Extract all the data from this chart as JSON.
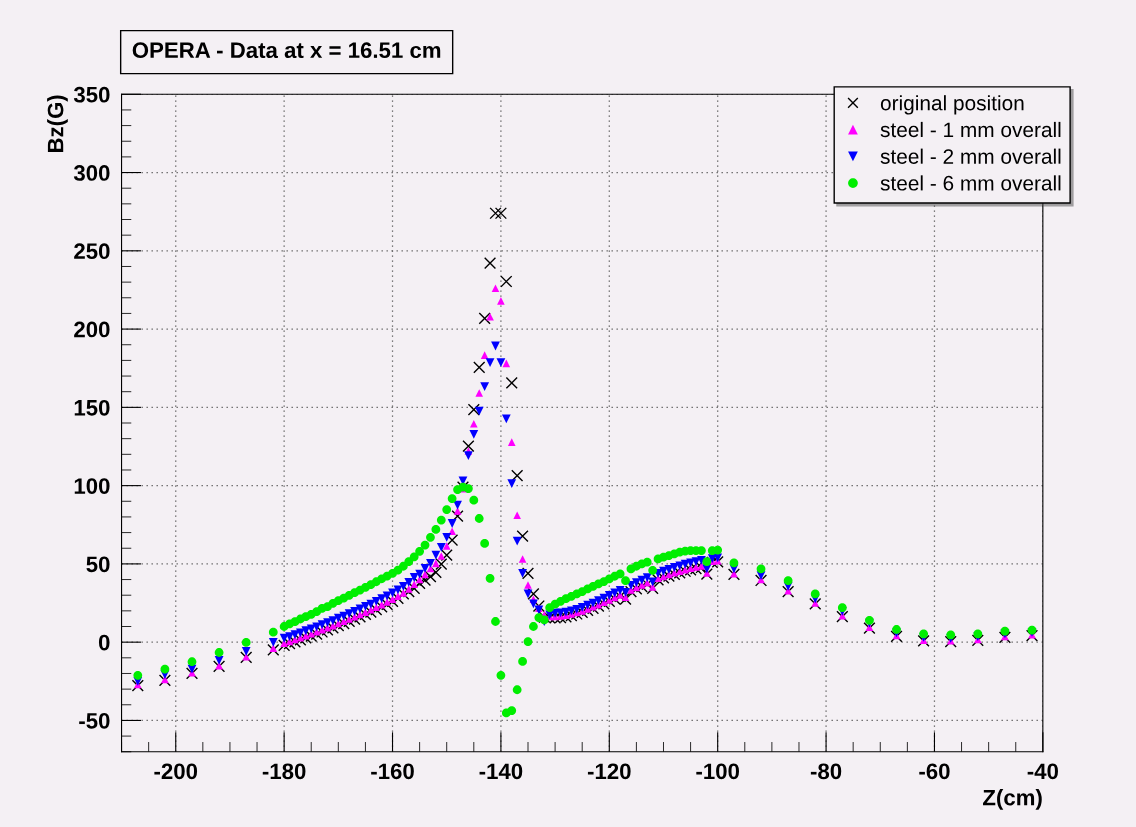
{
  "chart_data": {
    "type": "scatter",
    "title": "OPERA - Data at x = 16.51 cm",
    "xlabel": "Z(cm)",
    "ylabel": "Bz(G)",
    "x": [
      -207,
      -202,
      -197,
      -192,
      -187,
      -182,
      -180,
      -179,
      -178,
      -177,
      -176,
      -175,
      -174,
      -173,
      -172,
      -171,
      -170,
      -169,
      -168,
      -167,
      -166,
      -165,
      -164,
      -163,
      -162,
      -161,
      -160,
      -159,
      -158,
      -157,
      -156,
      -155,
      -154,
      -153,
      -152,
      -151,
      -150,
      -149,
      -148,
      -147,
      -146,
      -145,
      -144,
      -143,
      -142,
      -141,
      -140,
      -139,
      -138,
      -137,
      -136,
      -135,
      -134,
      -133,
      -132,
      -131,
      -130,
      -129,
      -128,
      -127,
      -126,
      -125,
      -124,
      -123,
      -122,
      -121,
      -120,
      -119,
      -118,
      -117,
      -116,
      -115,
      -114,
      -113,
      -112,
      -111,
      -110,
      -109,
      -108,
      -107,
      -106,
      -105,
      -104,
      -103,
      -102,
      -101,
      -100,
      -97,
      -92,
      -87,
      -82,
      -77,
      -72,
      -67,
      -62,
      -57,
      -52,
      -47,
      -42
    ],
    "series": [
      {
        "name": "original position",
        "color": "#000000",
        "marker": "cross",
        "values": [
          -27.8,
          -24.4,
          -20,
          -15.5,
          -9.7,
          -4.9,
          -2.1,
          -1,
          0.2,
          1.4,
          2.7,
          3.9,
          5.2,
          6.5,
          7.8,
          9.1,
          10.5,
          11.9,
          13.3,
          14.7,
          16.2,
          17.7,
          19.2,
          20.8,
          22.5,
          24.2,
          26,
          28,
          30.8,
          32.3,
          34.4,
          37.6,
          39.7,
          41.8,
          44.6,
          49.9,
          55.6,
          65.2,
          80.5,
          99,
          125.3,
          148.6,
          175.6,
          206.8,
          242.2,
          274,
          274,
          230.4,
          165.6,
          106.4,
          67.7,
          44,
          30.8,
          23.1,
          16,
          15.5,
          15.5,
          15.7,
          16.2,
          17,
          18,
          19,
          20.3,
          21.6,
          23,
          24.5,
          26,
          27.6,
          29.2,
          27.5,
          32.3,
          34,
          35.5,
          37,
          34.3,
          39.8,
          41,
          42.2,
          43.3,
          44.3,
          45.3,
          46.2,
          47,
          47.7,
          43.5,
          50.9,
          51.3,
          43.3,
          39.4,
          32.3,
          24.4,
          16.3,
          9,
          3.7,
          0.8,
          0.4,
          1.2,
          3.1,
          4.2
        ]
      },
      {
        "name": "steel - 1 mm overall",
        "color": "#ff00ff",
        "marker": "triangle",
        "values": [
          -27,
          -23.8,
          -19.5,
          -15,
          -9.3,
          -3.8,
          -0.6,
          0.5,
          1.7,
          2.9,
          4.2,
          5.4,
          6.7,
          8,
          9.3,
          10.6,
          12,
          13.4,
          14.8,
          16.2,
          17.7,
          19.2,
          20.7,
          22.3,
          24,
          25.7,
          27.5,
          29.4,
          31.5,
          34,
          37,
          40.1,
          43.3,
          47.1,
          50.3,
          55,
          61.4,
          70.9,
          83.9,
          98,
          122.1,
          139.5,
          159.2,
          183.4,
          207.9,
          226.1,
          218,
          178.1,
          127.8,
          81.1,
          53.1,
          36.5,
          27.4,
          21.7,
          17.4,
          16.5,
          16.5,
          16.7,
          17.2,
          18,
          19,
          20,
          21.3,
          22.6,
          24,
          25.5,
          27,
          28.6,
          30.2,
          28.8,
          33.3,
          35,
          36.5,
          38,
          35.3,
          40.8,
          42,
          43.2,
          44.3,
          45.3,
          46.3,
          47.2,
          48,
          48.7,
          44.2,
          51.7,
          52.1,
          43.8,
          40,
          32.9,
          25,
          16.9,
          9.6,
          4.3,
          1.3,
          0.9,
          1.7,
          3.6,
          4.7
        ]
      },
      {
        "name": "steel - 2 mm overall",
        "color": "#0000ff",
        "marker": "triangle_down",
        "values": [
          -25,
          -20.8,
          -17.2,
          -11.7,
          -5.9,
          -0.2,
          2.5,
          3.6,
          4.8,
          6,
          7.3,
          8.5,
          9.8,
          11.2,
          12.5,
          13.8,
          15.3,
          16.7,
          18.2,
          19.6,
          21.2,
          22.8,
          24.3,
          26,
          27.8,
          29.5,
          31.4,
          33.4,
          35.6,
          38.2,
          41.3,
          43.5,
          47.1,
          50.3,
          55.6,
          60.5,
          66.9,
          75.8,
          87.5,
          103,
          119.1,
          132.7,
          147.6,
          163.3,
          178.6,
          189.2,
          178.6,
          142.7,
          101.3,
          64.5,
          43.9,
          30.8,
          24.4,
          20.6,
          13.2,
          17.5,
          18.5,
          18.7,
          19.2,
          20,
          21,
          22.2,
          23.6,
          25,
          26.5,
          28.2,
          29.8,
          31.4,
          33,
          31.8,
          36.3,
          38,
          39.6,
          41.2,
          38.5,
          44,
          45.3,
          46.5,
          47.7,
          48.8,
          49.8,
          50.7,
          51.5,
          52.2,
          46.8,
          53.4,
          53.8,
          46.8,
          42.5,
          35.7,
          27.6,
          19.7,
          12.2,
          6,
          3,
          2.4,
          3.6,
          5.3,
          6.2
        ]
      },
      {
        "name": "steel - 6 mm overall",
        "color": "#00ee00",
        "marker": "circle",
        "values": [
          -21.2,
          -17.2,
          -12.5,
          -6.6,
          -0.2,
          6.4,
          10,
          11.7,
          13.1,
          14.8,
          16.3,
          17.8,
          19.5,
          21.6,
          22.7,
          24.8,
          26.5,
          28.2,
          29.9,
          31.6,
          33.3,
          35,
          36.7,
          38.6,
          40.5,
          42.2,
          43.9,
          46,
          48.5,
          51.5,
          54.5,
          58,
          62,
          67,
          72,
          78,
          84.7,
          91.7,
          97.5,
          99.1,
          98.1,
          90.7,
          79,
          63.1,
          40.8,
          13.2,
          -21.2,
          -45.2,
          -43.7,
          -30.4,
          -12.3,
          0.4,
          10,
          15.7,
          14.2,
          22,
          24.3,
          26.1,
          27.8,
          29.3,
          30.8,
          32.3,
          34,
          35.7,
          37.2,
          38.7,
          40.4,
          42.1,
          43.6,
          39.3,
          46.8,
          48.5,
          50,
          51.1,
          45.9,
          53.2,
          54.3,
          55.3,
          56.4,
          57.5,
          58.1,
          58.5,
          58.5,
          58.5,
          51.5,
          58.5,
          58.8,
          50.6,
          46.8,
          39.3,
          30.8,
          22,
          13.9,
          8.1,
          5.3,
          4.7,
          5.3,
          7.1,
          7.7
        ]
      }
    ],
    "xlim": [
      -210,
      -40
    ],
    "xticks": [
      -200,
      -180,
      -160,
      -140,
      -120,
      -100,
      -80,
      -60,
      -40
    ],
    "ylim": [
      -70,
      350
    ],
    "yticks": [
      -50,
      0,
      50,
      100,
      150,
      200,
      250,
      300,
      350
    ],
    "grid": true,
    "legend": "top right"
  }
}
